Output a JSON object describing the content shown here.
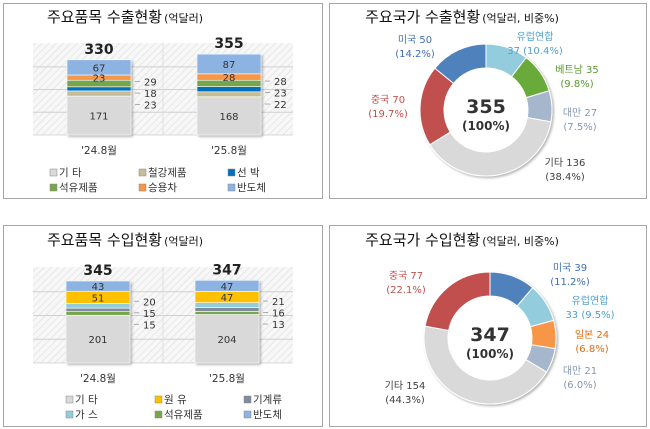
{
  "chart_data": [
    {
      "type": "bar",
      "stacked": true,
      "title": "주요품목 수출현황",
      "unit": "(억달러)",
      "categories": [
        "'24.8월",
        "'25.8월"
      ],
      "totals": [
        330,
        355
      ],
      "series": [
        {
          "name": "기 타",
          "values": [
            171,
            168
          ],
          "color": "#d9d9d9"
        },
        {
          "name": "철강제품",
          "values": [
            23,
            22
          ],
          "color": "#c4bd97"
        },
        {
          "name": "선 박",
          "values": [
            18,
            23
          ],
          "color": "#0070c0"
        },
        {
          "name": "석유제품",
          "values": [
            29,
            28
          ],
          "color": "#77a54b"
        },
        {
          "name": "승용차",
          "values": [
            23,
            28
          ],
          "color": "#f79646"
        },
        {
          "name": "반도체",
          "values": [
            67,
            87
          ],
          "color": "#8db3e2"
        }
      ],
      "legend": "bottom",
      "grid": true
    },
    {
      "type": "pie",
      "donut": true,
      "title": "주요국가 수출현황",
      "unit": "(억달러, 비중%)",
      "center_value": "355",
      "center_pct": "(100%)",
      "slices": [
        {
          "name": "유럽연합",
          "value": 37,
          "pct": "(10.4%)",
          "color": "#93cddd",
          "label_color": "#4f9fd0"
        },
        {
          "name": "베트남",
          "value": 35,
          "pct": "(9.8%)",
          "color": "#6aaa3b",
          "label_color": "#5a9a2e"
        },
        {
          "name": "대만",
          "value": 27,
          "pct": "(7.5%)",
          "color": "#a6b6cc",
          "label_color": "#8497b0"
        },
        {
          "name": "기타",
          "value": 136,
          "pct": "(38.4%)",
          "color": "#d9d9d9",
          "label_color": "#404040"
        },
        {
          "name": "중국",
          "value": 70,
          "pct": "(19.7%)",
          "color": "#c0504d",
          "label_color": "#c0504d"
        },
        {
          "name": "미국",
          "value": 50,
          "pct": "(14.2%)",
          "color": "#4f81bd",
          "label_color": "#3f6fb0"
        }
      ]
    },
    {
      "type": "bar",
      "stacked": true,
      "title": "주요품목 수입현황",
      "unit": "(억달러)",
      "categories": [
        "'24.8월",
        "'25.8월"
      ],
      "totals": [
        345,
        347
      ],
      "series": [
        {
          "name": "기 타",
          "values": [
            201,
            204
          ],
          "color": "#d9d9d9"
        },
        {
          "name": "석유제품",
          "values": [
            15,
            13
          ],
          "color": "#77a54b"
        },
        {
          "name": "기계류",
          "values": [
            15,
            16
          ],
          "color": "#7f8c9d"
        },
        {
          "name": "가 스",
          "values": [
            20,
            21
          ],
          "color": "#92cddc"
        },
        {
          "name": "원 유",
          "values": [
            51,
            47
          ],
          "color": "#ffc000"
        },
        {
          "name": "반도체",
          "values": [
            43,
            47
          ],
          "color": "#8db3e2"
        }
      ],
      "legend": "bottom",
      "grid": true
    },
    {
      "type": "pie",
      "donut": true,
      "title": "주요국가 수입현황",
      "unit": "(억달러, 비중%)",
      "center_value": "347",
      "center_pct": "(100%)",
      "slices": [
        {
          "name": "미국",
          "value": 39,
          "pct": "(11.2%)",
          "color": "#4f81bd",
          "label_color": "#3f6fb0"
        },
        {
          "name": "유럽연합",
          "value": 33,
          "pct": "(9.5%)",
          "color": "#93cddd",
          "label_color": "#4f9fd0"
        },
        {
          "name": "일본",
          "value": 24,
          "pct": "(6.8%)",
          "color": "#f79646",
          "label_color": "#e46c0a"
        },
        {
          "name": "대만",
          "value": 21,
          "pct": "(6.0%)",
          "color": "#a6b6cc",
          "label_color": "#8497b0"
        },
        {
          "name": "기타",
          "value": 154,
          "pct": "(44.3%)",
          "color": "#d9d9d9",
          "label_color": "#404040"
        },
        {
          "name": "중국",
          "value": 77,
          "pct": "(22.1%)",
          "color": "#c0504d",
          "label_color": "#c0504d"
        }
      ]
    }
  ]
}
